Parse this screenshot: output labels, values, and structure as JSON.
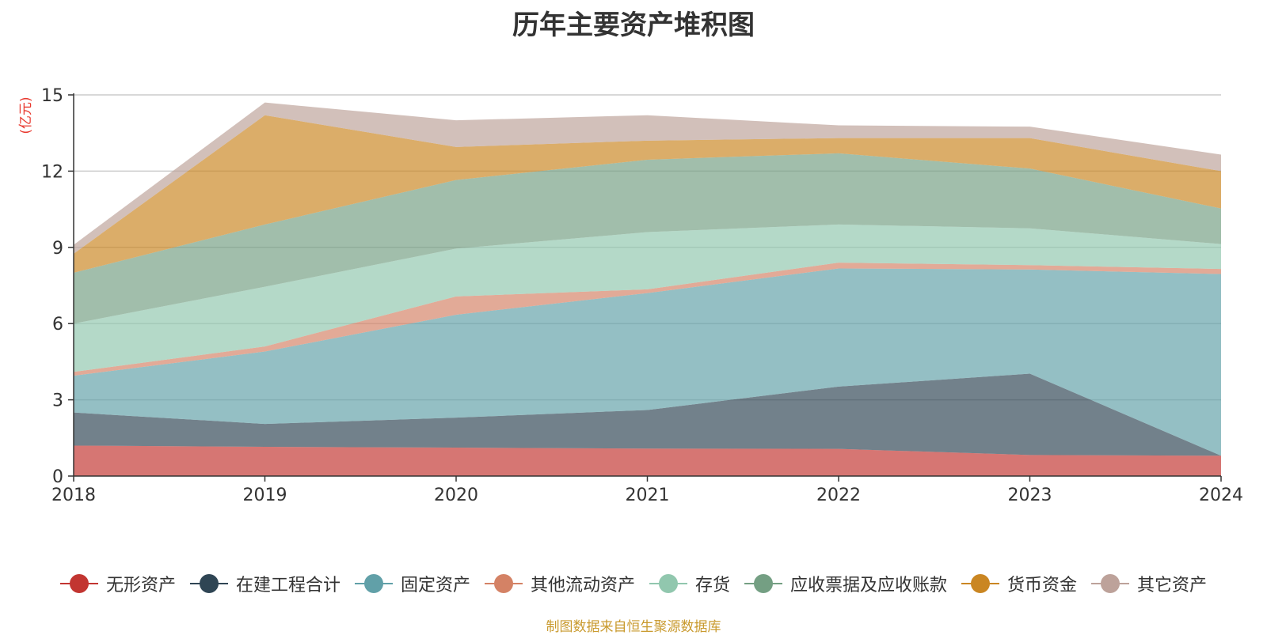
{
  "chart_data": {
    "type": "area",
    "stacked": true,
    "title": "历年主要资产堆积图",
    "ylabel": "(亿元)",
    "xlabel": "",
    "categories": [
      "2018",
      "2019",
      "2020",
      "2021",
      "2022",
      "2023",
      "2024"
    ],
    "ylim": [
      0,
      15
    ],
    "yticks": [
      0,
      3,
      6,
      9,
      12,
      15
    ],
    "grid": true,
    "legend_position": "bottom",
    "series": [
      {
        "name": "无形资产",
        "color": "#c23531",
        "values": [
          1.2,
          1.15,
          1.12,
          1.08,
          1.07,
          0.83,
          0.8
        ]
      },
      {
        "name": "在建工程合计",
        "color": "#2f4554",
        "values": [
          1.3,
          0.9,
          1.18,
          1.52,
          2.45,
          3.2,
          0.0
        ]
      },
      {
        "name": "固定资产",
        "color": "#61a0a8",
        "values": [
          1.45,
          2.85,
          4.05,
          4.6,
          4.65,
          4.1,
          7.15
        ]
      },
      {
        "name": "其他流动资产",
        "color": "#d48265",
        "values": [
          0.15,
          0.2,
          0.72,
          0.15,
          0.23,
          0.17,
          0.2
        ]
      },
      {
        "name": "存货",
        "color": "#91c7ae",
        "values": [
          1.9,
          2.35,
          1.88,
          2.25,
          1.5,
          1.45,
          0.98
        ]
      },
      {
        "name": "应收票据及应收账款",
        "color": "#749f83",
        "values": [
          2.0,
          2.45,
          2.7,
          2.85,
          2.8,
          2.35,
          1.4
        ]
      },
      {
        "name": "货币资金",
        "color": "#ca8622",
        "values": [
          0.75,
          4.3,
          1.3,
          0.75,
          0.6,
          1.2,
          1.47
        ]
      },
      {
        "name": "其它资产",
        "color": "#bda29a",
        "values": [
          0.35,
          0.5,
          1.05,
          1.0,
          0.5,
          0.45,
          0.65
        ]
      }
    ]
  },
  "source": "制图数据来自恒生聚源数据库"
}
